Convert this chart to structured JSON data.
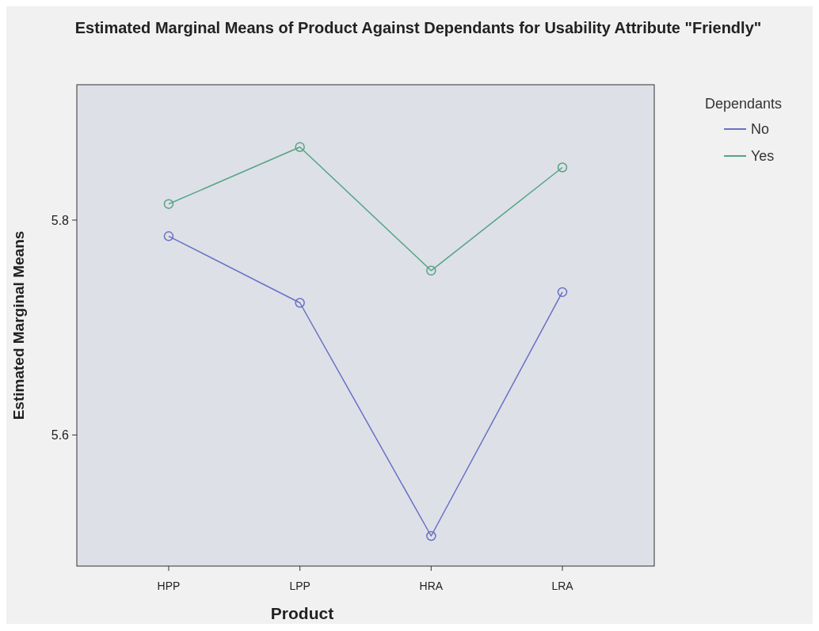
{
  "chart_data": {
    "type": "line",
    "title": "Estimated Marginal Means of Product Against Dependants for Usability Attribute \"Friendly\"",
    "xlabel": "Product",
    "ylabel": "Estimated Marginal Means",
    "legend_title": "Dependants",
    "categories": [
      "HPP",
      "LPP",
      "HRA",
      "LRA"
    ],
    "series": [
      {
        "name": "No",
        "color": "#6a70c4",
        "values": [
          5.785,
          5.723,
          5.506,
          5.733
        ]
      },
      {
        "name": "Yes",
        "color": "#55a483",
        "values": [
          5.815,
          5.868,
          5.753,
          5.849
        ]
      }
    ],
    "ylim": [
      5.478,
      5.926
    ],
    "yticks": [
      5.6,
      5.8
    ],
    "grid": false,
    "legend": "top right",
    "marker": "circle",
    "line_style": "solid"
  }
}
